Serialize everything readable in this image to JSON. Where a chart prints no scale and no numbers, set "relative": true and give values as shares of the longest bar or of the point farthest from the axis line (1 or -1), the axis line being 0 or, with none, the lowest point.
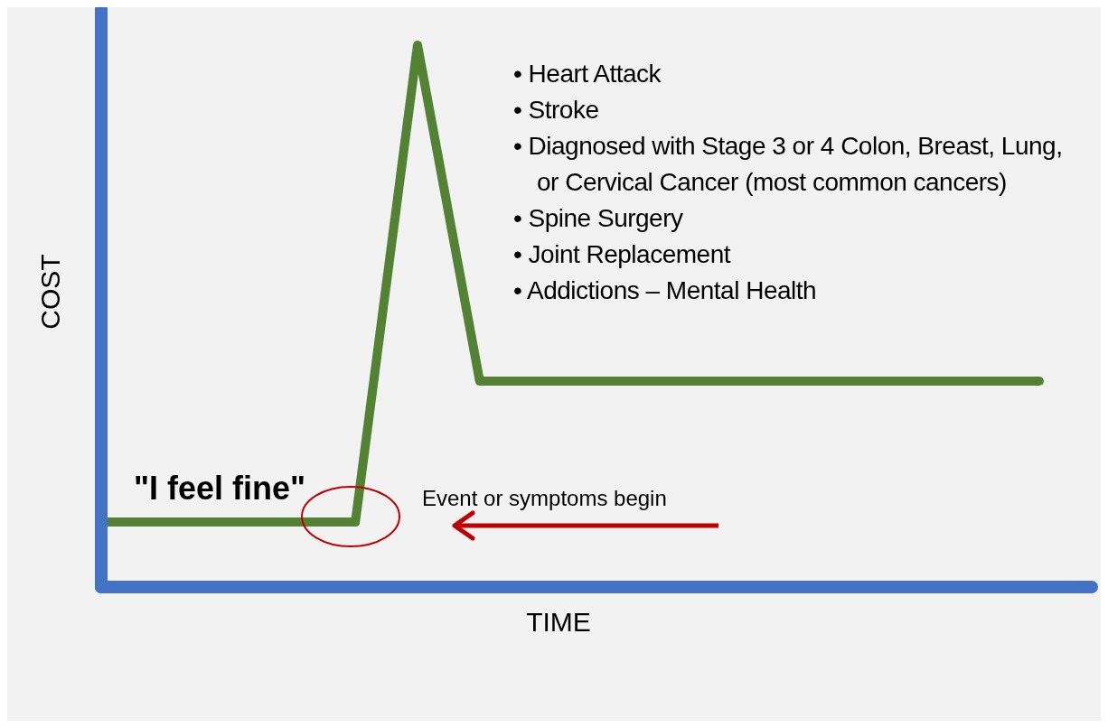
{
  "chart_data": {
    "type": "line",
    "relative": true,
    "xlabel": "TIME",
    "ylabel": "COST",
    "categories": [
      null,
      null,
      null,
      null,
      null,
      null,
      null,
      null,
      null,
      null,
      null,
      null,
      null,
      null,
      null,
      null
    ],
    "series": [
      {
        "color": "#548235",
        "values": [
          0.12,
          0.12,
          0.12,
          0.12,
          0.12,
          1,
          0.38,
          0.38,
          0.38,
          0.38,
          0.38,
          0.38,
          0.38,
          0.38,
          0.38,
          0.38
        ]
      }
    ],
    "marker": "none",
    "line_style": "solid",
    "annotations": [
      "• Heart Attack",
      "• Stroke",
      "• Diagnosed with Stage 3 or 4 Colon, Breast, Lung, or Cervical Cancer (most common cancers)",
      "• Spine Surgery",
      "• Joint Replacement",
      "• Addictions – Mental Health",
      "\"I feel fine\"",
      "Event or symptoms begin"
    ]
  }
}
